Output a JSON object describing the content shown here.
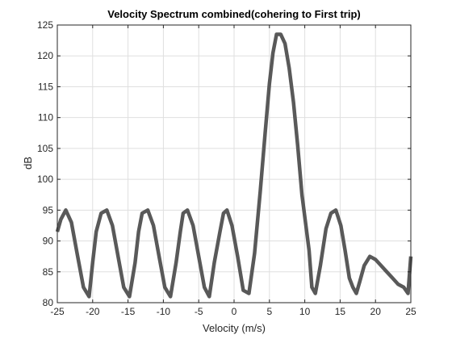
{
  "chart_data": {
    "type": "line",
    "title": "Velocity Spectrum combined(cohering to First trip)",
    "xlabel": "Velocity (m/s)",
    "ylabel": "dB",
    "xlim": [
      -25,
      25
    ],
    "ylim": [
      80,
      125
    ],
    "xticks": [
      -25,
      -20,
      -15,
      -10,
      -5,
      0,
      5,
      10,
      15,
      20,
      25
    ],
    "yticks": [
      80,
      85,
      90,
      95,
      100,
      105,
      110,
      115,
      120,
      125
    ],
    "grid": true,
    "line_color": "#595959",
    "series": [
      {
        "x": [
          -25,
          -24.5,
          -23.8,
          -23.0,
          -22.2,
          -21.3,
          -20.5,
          -20.0,
          -19.5,
          -18.8,
          -18.0,
          -17.2,
          -16.4,
          -15.6,
          -14.8,
          -14.0,
          -13.5,
          -13.0,
          -12.2,
          -11.4,
          -10.6,
          -9.8,
          -9.0,
          -8.2,
          -7.6,
          -7.2,
          -6.6,
          -5.8,
          -5.0,
          -4.2,
          -3.5,
          -2.8,
          -2.0,
          -1.5,
          -1.0,
          -0.3,
          0.5,
          1.3,
          2.1,
          2.9,
          3.7,
          4.4,
          5.0,
          5.5,
          6.0,
          6.6,
          7.2,
          7.8,
          8.4,
          9.0,
          9.6,
          10.1,
          10.6,
          11.0,
          11.5,
          12.2,
          13.0,
          13.7,
          14.4,
          15.1,
          15.7,
          16.3,
          16.8,
          17.3,
          17.8,
          18.4,
          19.2,
          20.0,
          20.8,
          21.6,
          22.4,
          23.2,
          24.0,
          24.6,
          25.0
        ],
        "y": [
          91.5,
          93.5,
          95.0,
          93.0,
          88.0,
          82.5,
          81.0,
          86.5,
          91.5,
          94.5,
          95.0,
          92.5,
          87.5,
          82.5,
          81.0,
          86.5,
          91.5,
          94.5,
          95.0,
          92.5,
          87.5,
          82.5,
          81.0,
          86.5,
          91.5,
          94.5,
          95.0,
          92.5,
          87.5,
          82.5,
          81.0,
          86.5,
          91.5,
          94.5,
          95.0,
          92.5,
          87.5,
          82.0,
          81.5,
          88.0,
          98.0,
          107.5,
          115.5,
          120.5,
          123.5,
          123.5,
          122.0,
          118.0,
          112.5,
          105.5,
          97.5,
          93.0,
          88.5,
          82.5,
          81.5,
          86.0,
          92.0,
          94.5,
          95.0,
          92.5,
          88.5,
          84.0,
          82.5,
          81.5,
          83.5,
          86.0,
          87.5,
          87.0,
          86.0,
          85.0,
          84.0,
          83.0,
          82.5,
          81.5,
          87.5
        ]
      }
    ]
  }
}
